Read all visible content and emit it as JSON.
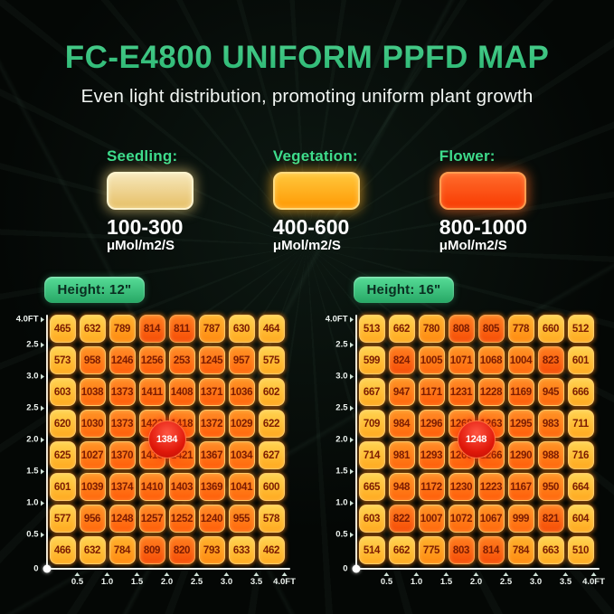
{
  "page": {
    "title": "FC-E4800 UNIFORM PPFD MAP",
    "subtitle": "Even light distribution, promoting uniform plant growth"
  },
  "legend": {
    "items": [
      {
        "label": "Seedling:",
        "range": "100-300",
        "unit": "μMol/m2/S",
        "swatch_color": "#E9C568"
      },
      {
        "label": "Vegetation:",
        "range": "400-600",
        "unit": "μMol/m2/S",
        "swatch_color": "#FFA50A"
      },
      {
        "label": "Flower:",
        "range": "800-1000",
        "unit": "μMol/m2/S",
        "swatch_color": "#FA4E0C"
      }
    ]
  },
  "colors": {
    "accent_green": "#3EDC8C",
    "title_green_top": "#6CEAA8",
    "title_green_bottom": "#2AB572",
    "cell_low": "#FFC233",
    "cell_mid": "#FF9A18",
    "cell_high": "#FF5C08",
    "cell_text": "#7B1C02",
    "badge_red": "#E0180A",
    "axis": "#EEF4F0"
  },
  "chart_data": [
    {
      "type": "heatmap",
      "title": "Height: 12\"",
      "center_value": "1384",
      "x_ticks": [
        "0.5",
        "1.0",
        "1.5",
        "2.0",
        "2.5",
        "3.0",
        "3.5",
        "4.0FT"
      ],
      "y_ticks_top_to_bottom": [
        "4.0FT",
        "2.5",
        "3.0",
        "2.5",
        "2.0",
        "1.5",
        "1.0",
        "0.5",
        "0"
      ],
      "rows": [
        [
          465,
          632,
          789,
          814,
          811,
          787,
          630,
          464
        ],
        [
          573,
          958,
          1246,
          1256,
          253,
          1245,
          957,
          575
        ],
        [
          603,
          1038,
          1373,
          1411,
          1408,
          1371,
          1036,
          602
        ],
        [
          620,
          1030,
          1373,
          1423,
          1418,
          1372,
          1029,
          622
        ],
        [
          625,
          1027,
          1370,
          1415,
          1421,
          1367,
          1034,
          627
        ],
        [
          601,
          1039,
          1374,
          1410,
          1403,
          1369,
          1041,
          600
        ],
        [
          577,
          956,
          1248,
          1257,
          1252,
          1240,
          955,
          578
        ],
        [
          466,
          632,
          784,
          809,
          820,
          793,
          633,
          462
        ]
      ]
    },
    {
      "type": "heatmap",
      "title": "Height: 16\"",
      "center_value": "1248",
      "x_ticks": [
        "0.5",
        "1.0",
        "1.5",
        "2.0",
        "2.5",
        "3.0",
        "3.5",
        "4.0FT"
      ],
      "y_ticks_top_to_bottom": [
        "4.0FT",
        "2.5",
        "3.0",
        "2.5",
        "2.0",
        "1.5",
        "1.0",
        "0.5",
        "0"
      ],
      "rows": [
        [
          513,
          662,
          780,
          808,
          805,
          778,
          660,
          512
        ],
        [
          599,
          824,
          1005,
          1071,
          1068,
          1004,
          823,
          601
        ],
        [
          667,
          947,
          1171,
          1231,
          1228,
          1169,
          945,
          666
        ],
        [
          709,
          984,
          1296,
          1268,
          1263,
          1295,
          983,
          711
        ],
        [
          714,
          981,
          1293,
          1260,
          1266,
          1290,
          988,
          716
        ],
        [
          665,
          948,
          1172,
          1230,
          1223,
          1167,
          950,
          664
        ],
        [
          603,
          822,
          1007,
          1072,
          1067,
          999,
          821,
          604
        ],
        [
          514,
          662,
          775,
          803,
          814,
          784,
          663,
          510
        ]
      ]
    }
  ]
}
